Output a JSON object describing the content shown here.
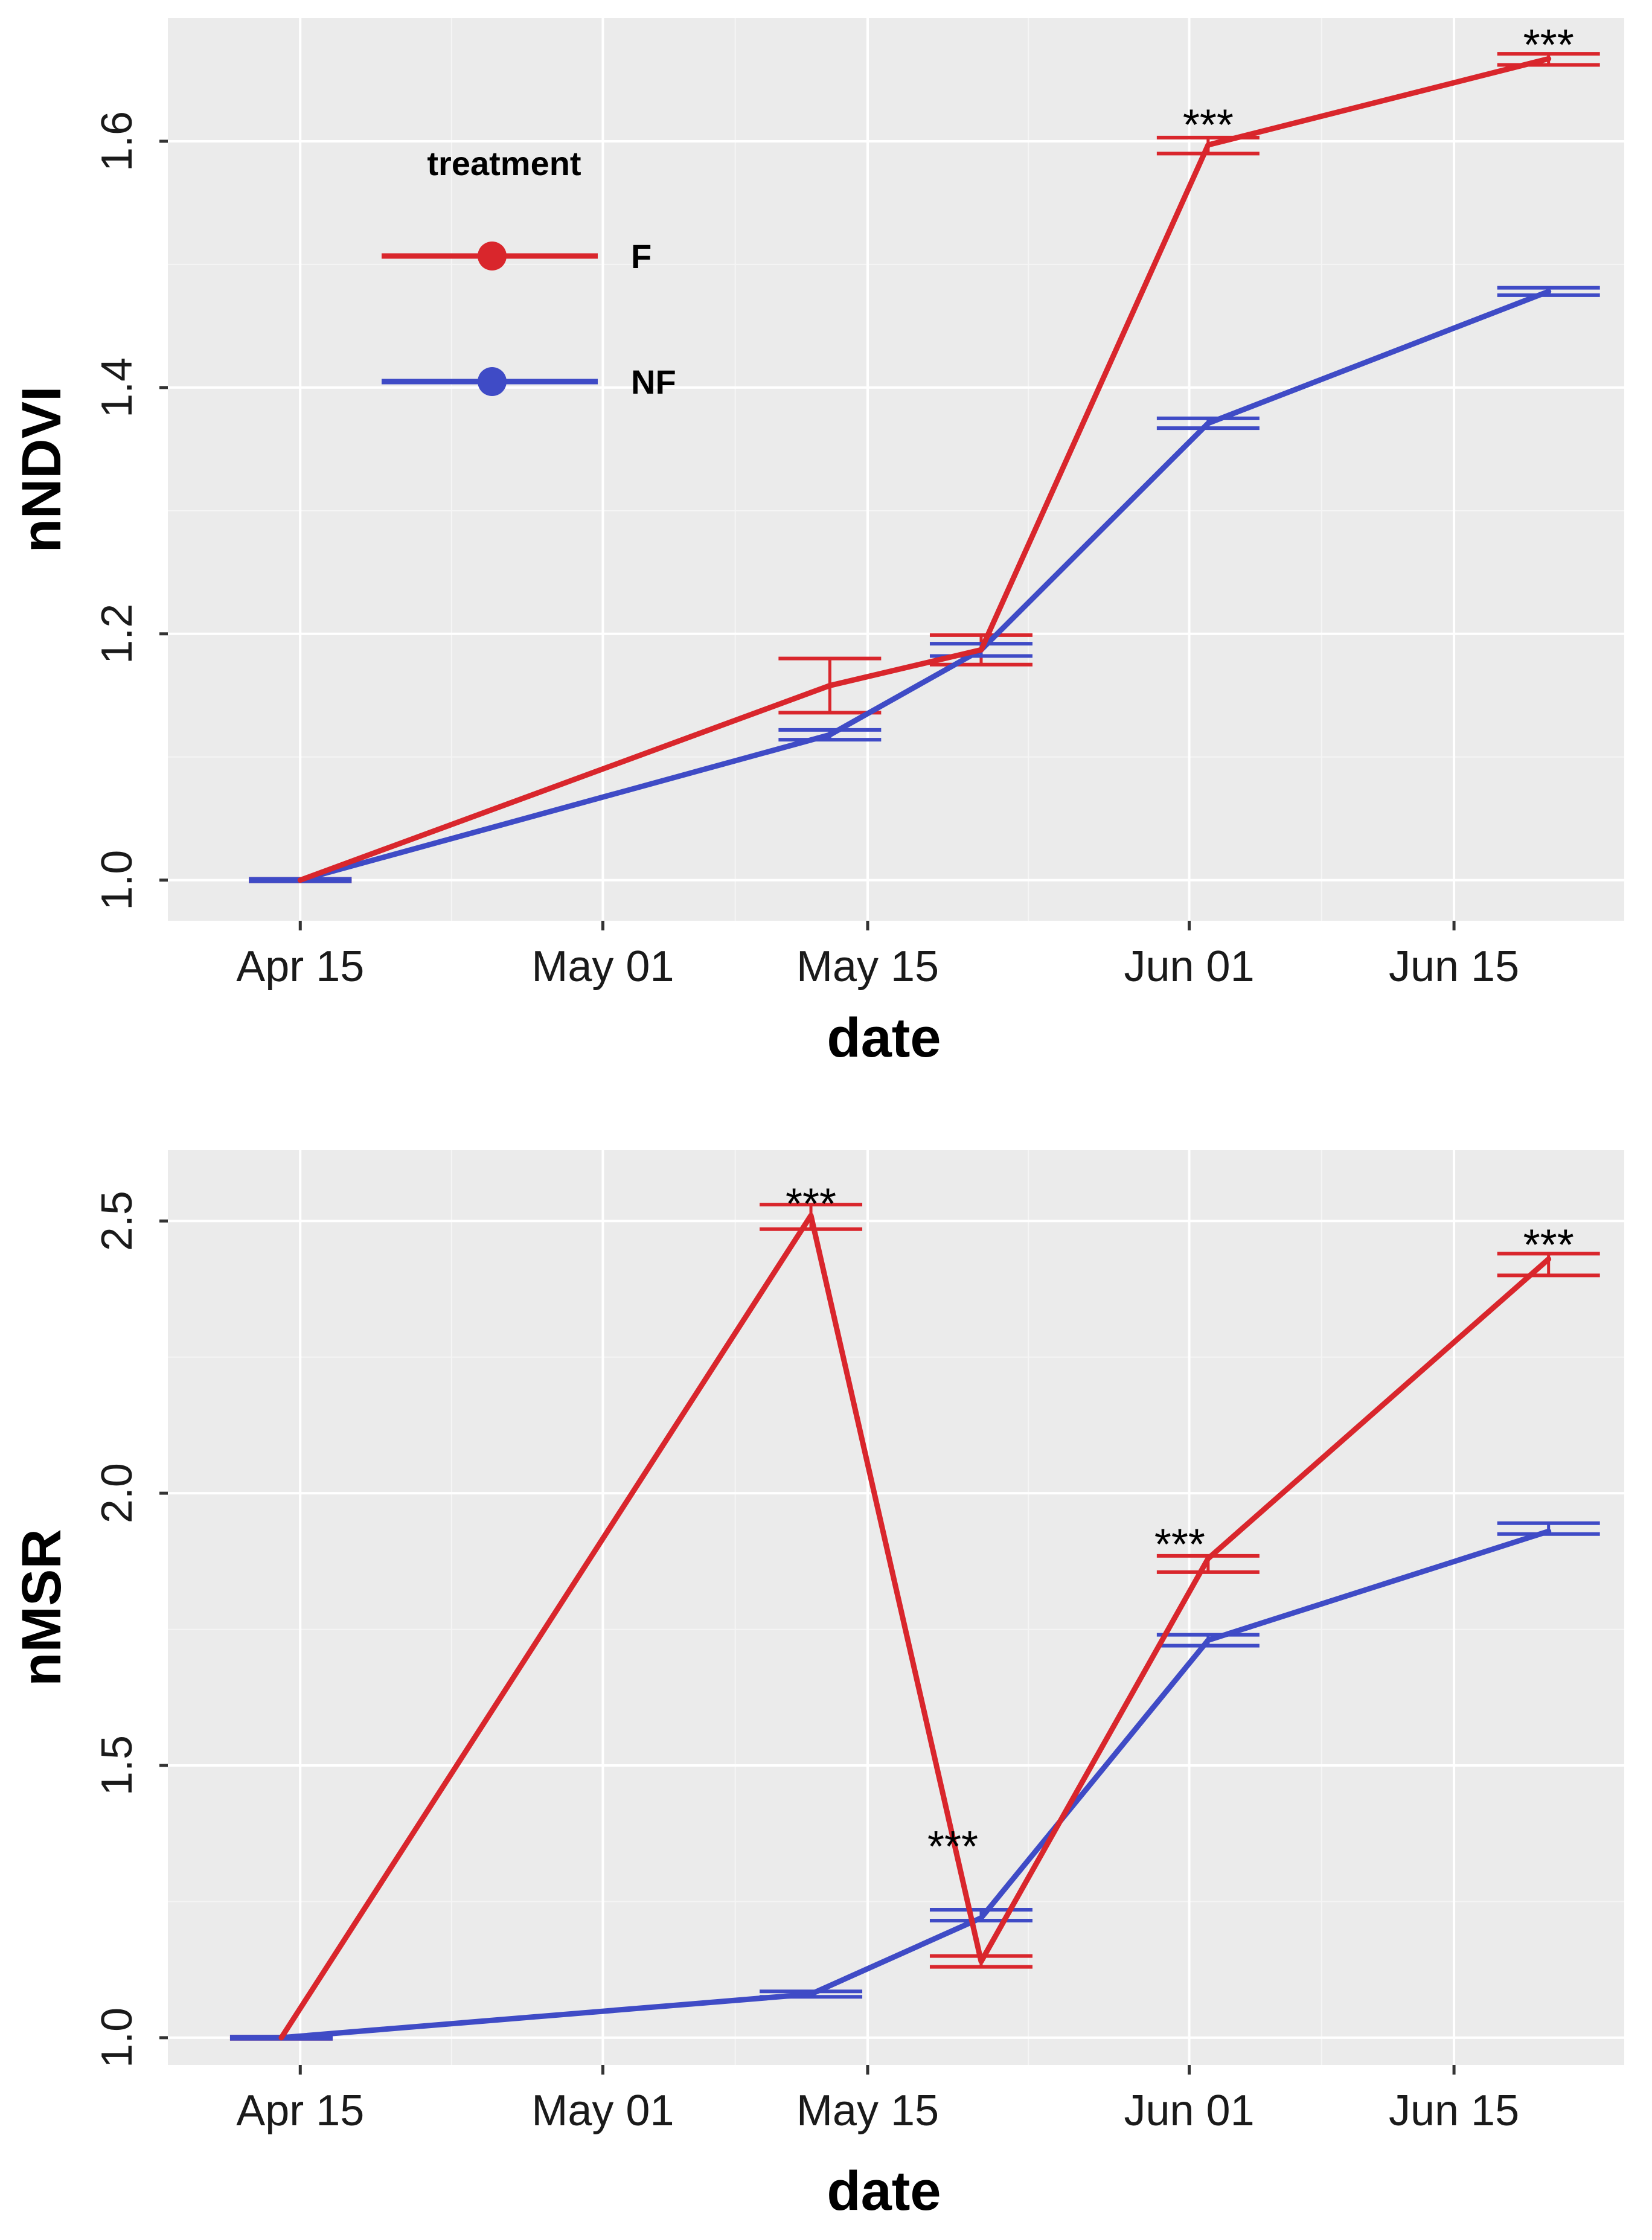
{
  "colors": {
    "panel_bg": "#ebebeb",
    "grid_major": "#ffffff",
    "grid_minor": "#f5f5f5",
    "F": "#d9262c",
    "NF": "#3f4bc6",
    "text": "#1a1a1a"
  },
  "legend": {
    "title": "treatment",
    "entries": [
      {
        "label": "F",
        "color": "#d9262c"
      },
      {
        "label": "NF",
        "color": "#3f4bc6"
      }
    ]
  },
  "chart_data": [
    {
      "type": "line",
      "title": "",
      "xlabel": "date",
      "ylabel": "nNDVI",
      "x_ticks": [
        "Apr 15",
        "May 01",
        "May 15",
        "Jun 01",
        "Jun 15"
      ],
      "x_tick_days": [
        0,
        16,
        30,
        47,
        61
      ],
      "xlim_days": [
        -7,
        70
      ],
      "y_ticks": [
        "1.0",
        "1.2",
        "1.4",
        "1.6"
      ],
      "y_tick_values": [
        1.0,
        1.2,
        1.4,
        1.6
      ],
      "ylim": [
        0.967,
        1.7
      ],
      "legend_position": "top-left",
      "series": [
        {
          "name": "F",
          "x_days": [
            0,
            28,
            36,
            48,
            66
          ],
          "values": [
            1.0,
            1.158,
            1.187,
            1.597,
            1.667
          ],
          "err_low": [
            0.999,
            1.136,
            1.175,
            1.59,
            1.662
          ],
          "err_high": [
            1.001,
            1.18,
            1.199,
            1.603,
            1.671
          ]
        },
        {
          "name": "NF",
          "x_days": [
            0,
            28,
            36,
            48,
            66
          ],
          "values": [
            1.0,
            1.118,
            1.187,
            1.371,
            1.478
          ],
          "err_low": [
            0.999,
            1.114,
            1.182,
            1.367,
            1.475
          ],
          "err_high": [
            1.001,
            1.122,
            1.192,
            1.375,
            1.481
          ]
        }
      ],
      "annotations": [
        {
          "text": "***",
          "x_day": 48,
          "y": 1.615
        },
        {
          "text": "***",
          "x_day": 66,
          "y": 1.68
        }
      ]
    },
    {
      "type": "line",
      "title": "",
      "xlabel": "date",
      "ylabel": "nMSR",
      "x_ticks": [
        "Apr 15",
        "May 01",
        "May 15",
        "Jun 01",
        "Jun 15"
      ],
      "x_tick_days": [
        0,
        16,
        30,
        47,
        61
      ],
      "xlim_days": [
        -7,
        70
      ],
      "y_ticks": [
        "1.0",
        "1.5",
        "2.0",
        "2.5"
      ],
      "y_tick_values": [
        1.0,
        1.5,
        2.0,
        2.5
      ],
      "ylim": [
        0.95,
        2.63
      ],
      "series": [
        {
          "name": "F",
          "x_days": [
            -1,
            27,
            36,
            48,
            66
          ],
          "values": [
            1.0,
            2.51,
            1.14,
            1.88,
            2.43
          ],
          "err_low": [
            0.998,
            2.485,
            1.13,
            1.855,
            2.4
          ],
          "err_high": [
            1.002,
            2.53,
            1.15,
            1.885,
            2.44
          ]
        },
        {
          "name": "NF",
          "x_days": [
            -1,
            27,
            36,
            48,
            66
          ],
          "values": [
            1.0,
            1.08,
            1.22,
            1.73,
            1.93
          ],
          "err_low": [
            0.998,
            1.075,
            1.215,
            1.72,
            1.925
          ],
          "err_high": [
            1.002,
            1.085,
            1.235,
            1.74,
            1.945
          ]
        }
      ],
      "annotations": [
        {
          "text": "***",
          "x_day": 27,
          "y": 2.535
        },
        {
          "text": "***",
          "x_day": 34.5,
          "y": 1.355
        },
        {
          "text": "***",
          "x_day": 46.5,
          "y": 1.91
        },
        {
          "text": "***",
          "x_day": 66,
          "y": 2.46
        }
      ]
    }
  ]
}
